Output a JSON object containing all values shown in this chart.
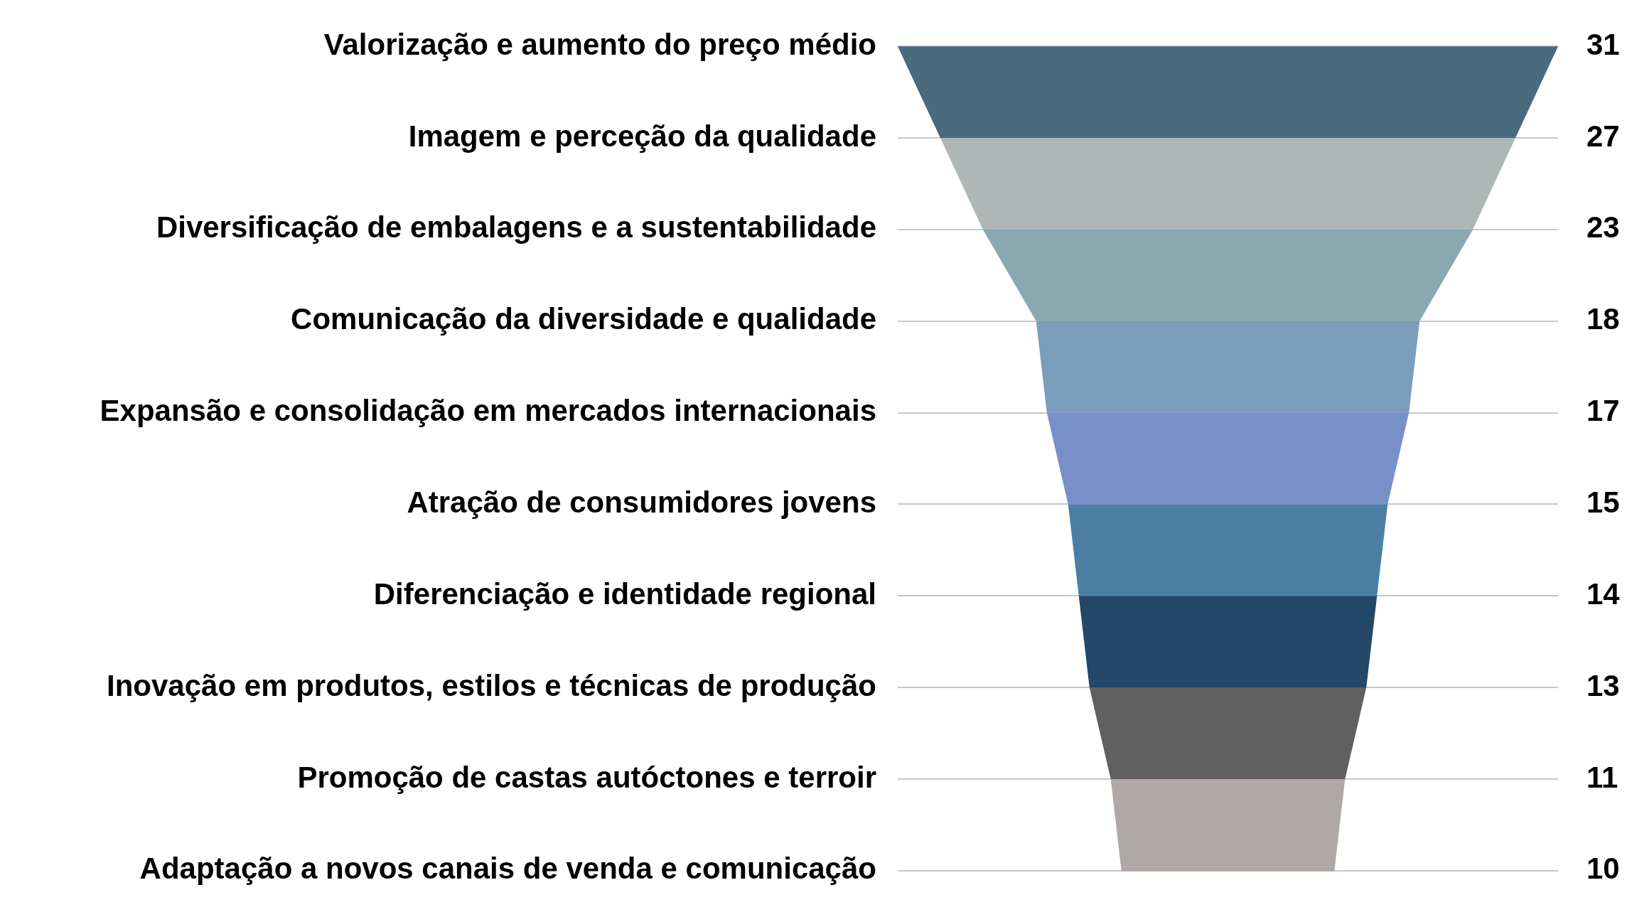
{
  "chart_data": {
    "type": "other",
    "categories": [
      "Valorização e aumento do preço médio",
      "Imagem e perceção da qualidade",
      "Diversificação de embalagens e a sustentabilidade",
      "Comunicação da diversidade e qualidade",
      "Expansão e consolidação em mercados internacionais",
      "Atração de consumidores jovens",
      "Diferenciação e identidade regional",
      "Inovação em produtos, estilos e técnicas de produção",
      "Promoção de castas autóctones e terroir",
      "Adaptação a novos canais de venda e comunicação"
    ],
    "values": [
      31,
      27,
      23,
      18,
      17,
      15,
      14,
      13,
      11,
      10
    ],
    "colors": [
      "#4a6a7e",
      "#adb7b5",
      "#8aa8b2",
      "#7a9dbb",
      "#7890c8",
      "#4a7fa3",
      "#234868",
      "#606060",
      "#b0a8a6",
      "#b0a8a6"
    ],
    "data_labels": true
  }
}
